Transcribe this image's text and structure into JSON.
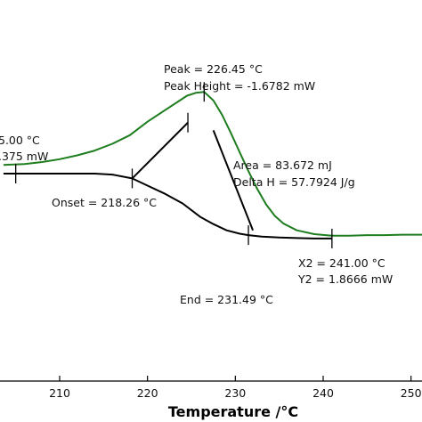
{
  "chart_data": {
    "type": "line",
    "title": "",
    "xlabel": "Temperature /°C",
    "ylabel": "",
    "xlim": [
      203.6,
      251.9
    ],
    "x_ticks": [
      210,
      220,
      230,
      240,
      250
    ],
    "grid": false,
    "legend": "none",
    "colors": {
      "green": "#1e7d1e",
      "black": "#000000"
    },
    "series": [
      {
        "color": "#1e7d1e",
        "x": [
          203.6,
          206,
          208,
          210,
          212,
          214,
          216,
          218,
          220,
          222,
          223.5,
          224.5,
          225.5,
          226.45,
          227.5,
          228.5,
          229.5,
          230.5,
          231.5,
          232.5,
          233.5,
          234.5,
          235.5,
          237,
          239,
          241,
          243,
          245,
          247,
          249,
          251.9
        ],
        "y": [
          0.18,
          0.2,
          0.24,
          0.3,
          0.38,
          0.48,
          0.62,
          0.8,
          1.08,
          1.32,
          1.5,
          1.62,
          1.68,
          1.7,
          1.52,
          1.22,
          0.84,
          0.44,
          0.05,
          -0.32,
          -0.64,
          -0.88,
          -1.04,
          -1.18,
          -1.26,
          -1.29,
          -1.29,
          -1.28,
          -1.28,
          -1.27,
          -1.27
        ]
      },
      {
        "color": "#000000",
        "x": [
          203.6,
          210,
          214,
          216,
          218.26,
          220,
          222,
          224,
          226,
          227.5,
          229,
          230.5,
          231.49,
          233,
          235,
          237,
          239,
          241
        ],
        "y": [
          0,
          0,
          0,
          -0.02,
          -0.1,
          -0.25,
          -0.42,
          -0.62,
          -0.9,
          -1.05,
          -1.18,
          -1.25,
          -1.28,
          -1.31,
          -1.33,
          -1.34,
          -1.35,
          -1.35
        ]
      }
    ],
    "construction_lines": [
      {
        "x": [
          218.26,
          224.6
        ],
        "y": [
          -0.1,
          1.06
        ]
      },
      {
        "x": [
          227.5,
          232.0
        ],
        "y": [
          0.9,
          -1.18
        ]
      }
    ],
    "markers": [
      {
        "x": 205.0,
        "y": 0.0
      },
      {
        "x": 218.26,
        "y": -0.1
      },
      {
        "x": 224.6,
        "y": 1.06
      },
      {
        "x": 226.45,
        "y": 1.7
      },
      {
        "x": 231.49,
        "y": -1.28
      },
      {
        "x": 241.0,
        "y": -1.35
      }
    ],
    "annotations": {
      "left_temp": "5.00 °C",
      "left_value": ".375 mW",
      "peak": "Peak = 226.45 °C",
      "peak_height": "Peak Height = -1.6782 mW",
      "area": "Area = 83.672 mJ",
      "delta_h": "Delta H = 57.7924 J/g",
      "onset": "Onset = 218.26 °C",
      "end": "End = 231.49 °C",
      "x2": "X2 = 241.00 °C",
      "y2": "Y2 = 1.8666 mW"
    }
  }
}
